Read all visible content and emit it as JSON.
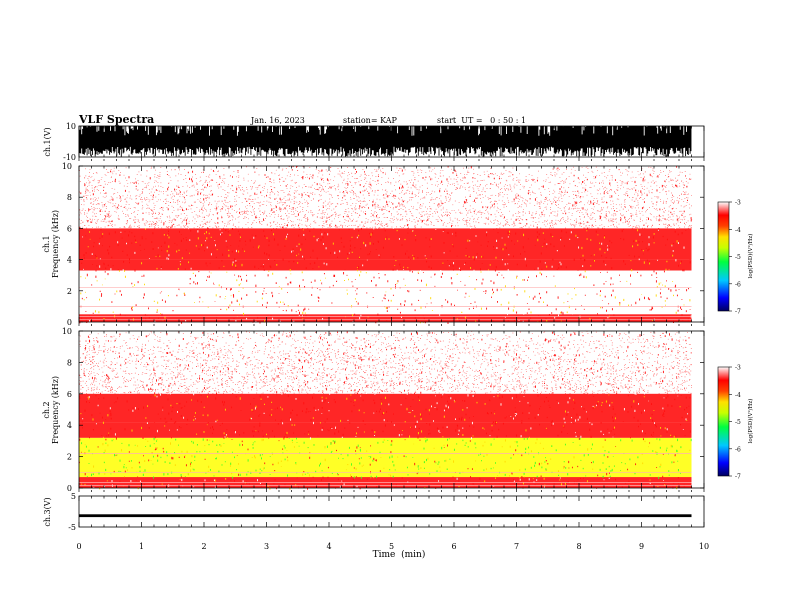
{
  "header": {
    "title": "VLF Spectra",
    "date": "Jan. 16, 2023",
    "station": "station= KAP",
    "start_ut": "start  UT =   0 : 50 : 1"
  },
  "chart_data": [
    {
      "id": "ch1-waveform",
      "type": "area",
      "ylabel": "ch.1(V)",
      "ylim": [
        -10,
        10
      ],
      "y_ticks": [
        "10",
        "-10"
      ],
      "xlim": [
        0,
        10
      ],
      "description_values": {
        "amplitude_range_V": [
          -10,
          10
        ]
      }
    },
    {
      "id": "ch1-spectrogram",
      "type": "heatmap",
      "panel_label": "ch.1",
      "ylabel": "Frequency  (kHz)",
      "ylim": [
        0,
        10
      ],
      "y_ticks": [
        "0",
        "2",
        "4",
        "6",
        "8",
        "10"
      ],
      "xlim": [
        0,
        10
      ],
      "data_extent_min": 9.8,
      "intensity_bands": [
        {
          "freq_kHz": [
            0,
            0.5
          ],
          "level": -3.6
        },
        {
          "freq_kHz": [
            0.5,
            1.2
          ],
          "level": -3.3
        },
        {
          "freq_kHz": [
            1.2,
            3.3
          ],
          "level": -3.4
        },
        {
          "freq_kHz": [
            3.3,
            4.0
          ],
          "level": -3.8
        },
        {
          "freq_kHz": [
            4.0,
            6.0
          ],
          "level": -4.0
        },
        {
          "freq_kHz": [
            6.0,
            10.0
          ],
          "level": -3.0
        }
      ],
      "colorbar": {
        "label": "log(PSD)(V²/Hz)",
        "ticks": [
          "-3",
          "-4",
          "-5",
          "-6",
          "-7"
        ],
        "range": [
          -7,
          -3
        ]
      }
    },
    {
      "id": "ch2-spectrogram",
      "type": "heatmap",
      "panel_label": "ch.2",
      "ylabel": "Frequency  (kHz)",
      "ylim": [
        0,
        10
      ],
      "y_ticks": [
        "0",
        "2",
        "4",
        "6",
        "8",
        "10"
      ],
      "xlim": [
        0,
        10
      ],
      "data_extent_min": 9.8,
      "intensity_bands": [
        {
          "freq_kHz": [
            0,
            0.7
          ],
          "level": -3.6
        },
        {
          "freq_kHz": [
            0.7,
            3.2
          ],
          "level": -4.9
        },
        {
          "freq_kHz": [
            3.2,
            4.2
          ],
          "level": -3.8
        },
        {
          "freq_kHz": [
            4.2,
            6.0
          ],
          "level": -4.0
        },
        {
          "freq_kHz": [
            6.0,
            10.0
          ],
          "level": -3.0
        }
      ],
      "colorbar": {
        "label": "log(PSD)(V²/Hz)",
        "ticks": [
          "-3",
          "-4",
          "-5",
          "-6",
          "-7"
        ],
        "range": [
          -7,
          -3
        ]
      }
    },
    {
      "id": "ch3-waveform",
      "type": "area",
      "ylabel": "ch.3(V)",
      "ylim": [
        -5,
        5
      ],
      "y_ticks": [
        "5",
        "-5"
      ],
      "xlim": [
        0,
        10
      ],
      "xlabel": "Time  (min)",
      "x_ticks": [
        "0",
        "1",
        "2",
        "3",
        "4",
        "5",
        "6",
        "7",
        "8",
        "9",
        "10"
      ],
      "band_V": [
        -1.8,
        -0.9
      ]
    }
  ],
  "colors": {
    "colormap": [
      "#000080",
      "#0000ff",
      "#00a0ff",
      "#00ff80",
      "#a0ff00",
      "#ffff00",
      "#ff8000",
      "#ff0000",
      "#ffffff"
    ]
  }
}
